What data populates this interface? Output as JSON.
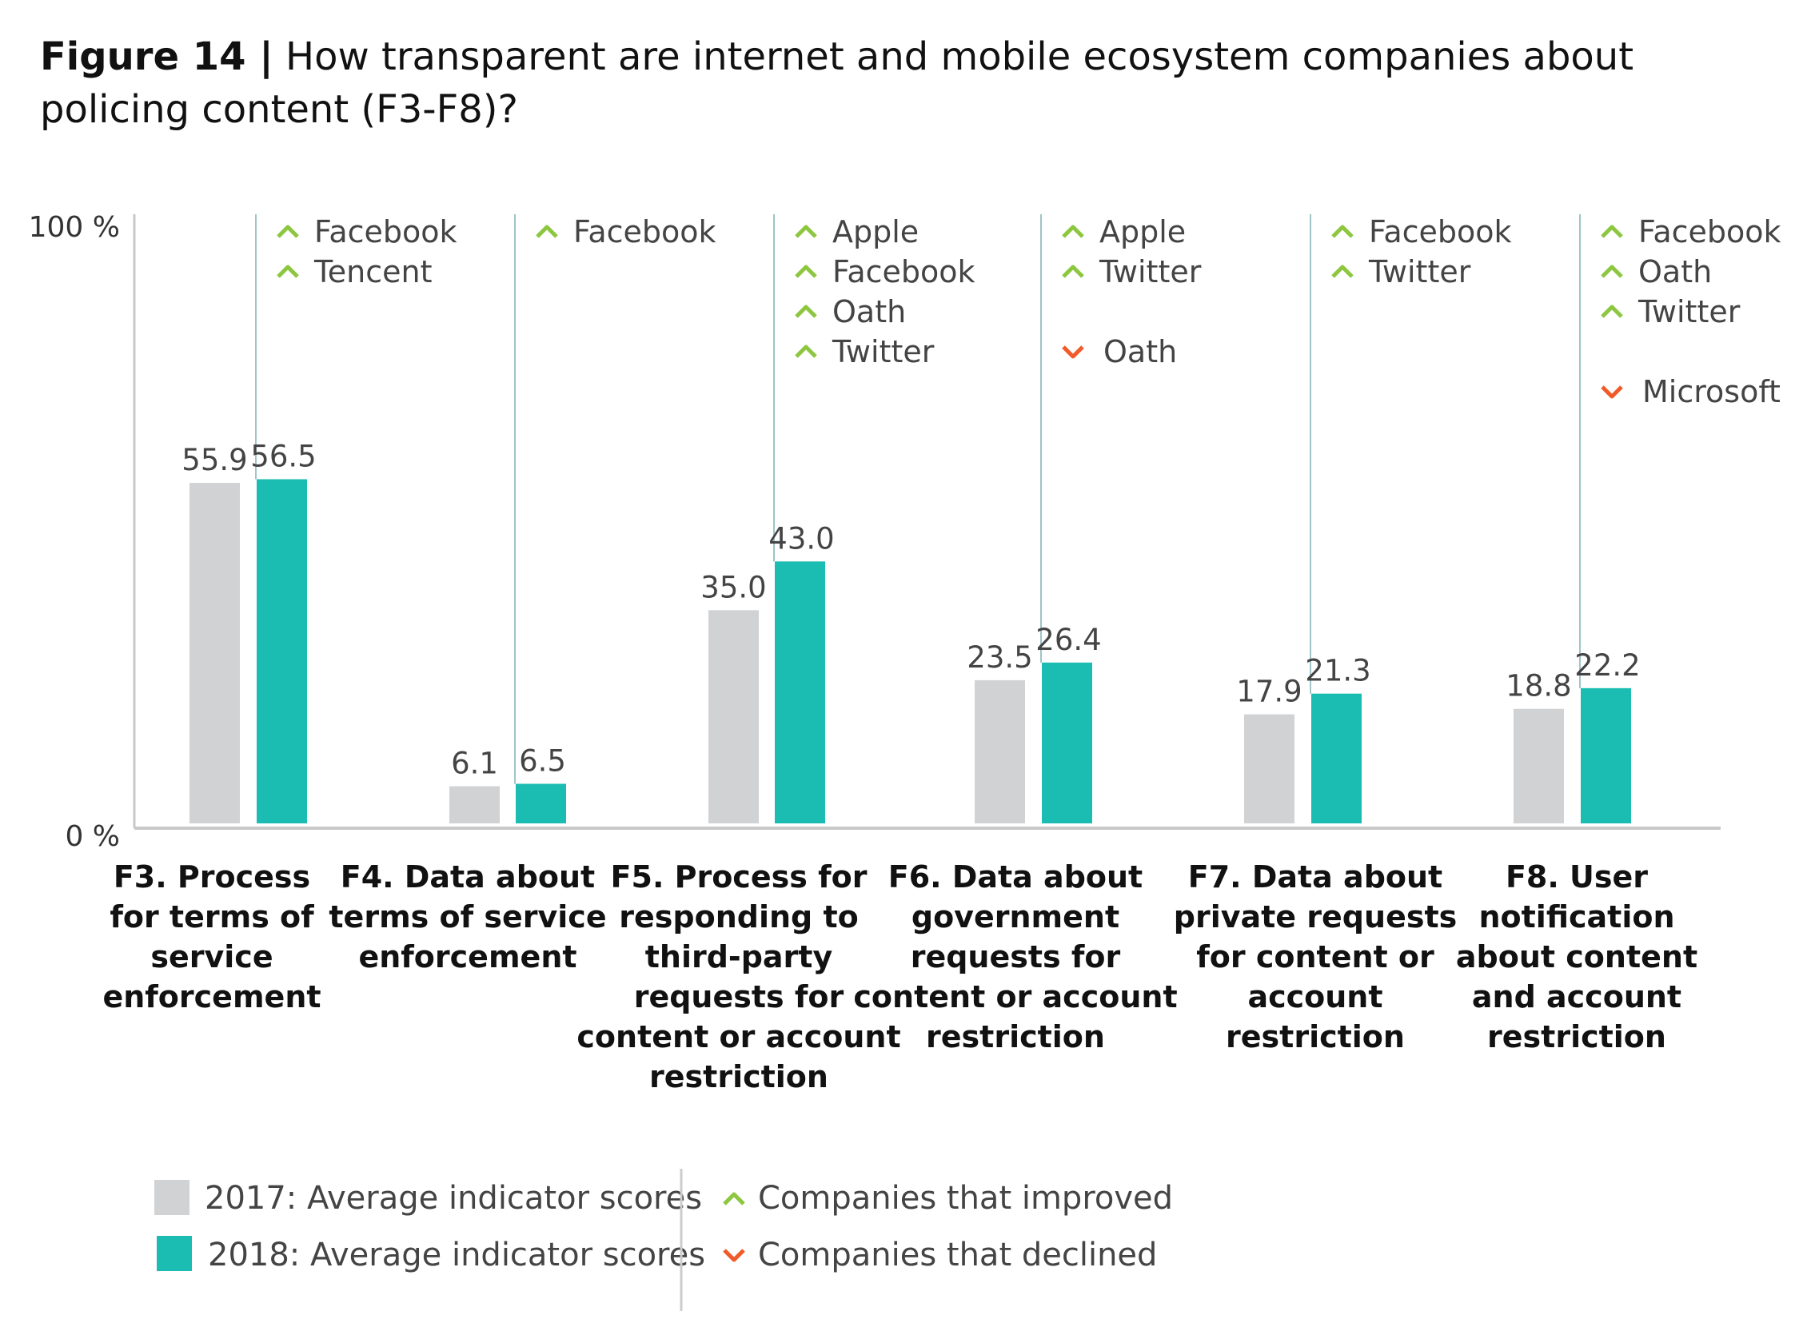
{
  "title": {
    "lead": "Figure 14 |",
    "text": "How transparent are internet and mobile ecosystem companies about policing content (F3-F8)?"
  },
  "chart_data": {
    "type": "bar",
    "ylim": [
      0,
      100
    ],
    "yticks": [
      "100 %",
      "0 %"
    ],
    "colors": {
      "2017": "#d1d2d4",
      "2018": "#1bbcb2",
      "improved": "#8dc63f",
      "declined": "#f15a29"
    },
    "categories": [
      {
        "code": "F3",
        "label_lines": [
          "F3. Process",
          "for terms of",
          "service",
          "enforcement"
        ],
        "improved": [
          "Facebook",
          "Tencent"
        ],
        "declined": []
      },
      {
        "code": "F4",
        "label_lines": [
          "F4. Data about",
          "terms of service",
          "enforcement"
        ],
        "improved": [
          "Facebook"
        ],
        "declined": []
      },
      {
        "code": "F5",
        "label_lines": [
          "F5. Process for",
          "responding to",
          "third-party",
          "requests for",
          "content or account",
          "restriction"
        ],
        "improved": [
          "Apple",
          "Facebook",
          "Oath",
          "Twitter"
        ],
        "declined": []
      },
      {
        "code": "F6",
        "label_lines": [
          "F6. Data about",
          "government",
          "requests for",
          "content or account",
          "restriction"
        ],
        "improved": [
          "Apple",
          "Twitter"
        ],
        "declined": [
          "Oath"
        ]
      },
      {
        "code": "F7",
        "label_lines": [
          "F7. Data about",
          "private requests",
          "for content or",
          "account",
          "restriction"
        ],
        "improved": [
          "Facebook",
          "Twitter"
        ],
        "declined": []
      },
      {
        "code": "F8",
        "label_lines": [
          "F8. User",
          "notification",
          "about content",
          "and account",
          "restriction"
        ],
        "improved": [
          "Facebook",
          "Oath",
          "Twitter"
        ],
        "declined": [
          "Microsoft"
        ]
      }
    ],
    "series": [
      {
        "name": "2017: Average indicator scores",
        "values": [
          55.9,
          6.1,
          35.0,
          23.5,
          17.9,
          18.8
        ]
      },
      {
        "name": "2018: Average indicator scores",
        "values": [
          56.5,
          6.5,
          43.0,
          26.4,
          21.3,
          22.2
        ]
      }
    ],
    "legend": {
      "improved": "Companies that improved",
      "declined": "Companies that declined"
    }
  }
}
